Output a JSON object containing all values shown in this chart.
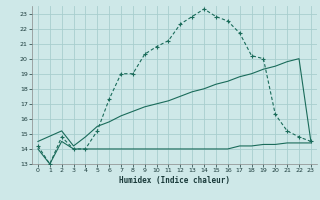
{
  "xlabel": "Humidex (Indice chaleur)",
  "bg_color": "#cee8e8",
  "grid_color": "#a8cece",
  "line_color": "#1a6b5a",
  "xlim": [
    -0.5,
    23.5
  ],
  "ylim": [
    13,
    23.5
  ],
  "yticks": [
    13,
    14,
    15,
    16,
    17,
    18,
    19,
    20,
    21,
    22,
    23
  ],
  "xticks": [
    0,
    1,
    2,
    3,
    4,
    5,
    6,
    7,
    8,
    9,
    10,
    11,
    12,
    13,
    14,
    15,
    16,
    17,
    18,
    19,
    20,
    21,
    22,
    23
  ],
  "line1_x": [
    0,
    1,
    2,
    3,
    4,
    5,
    6,
    7,
    8,
    9,
    10,
    11,
    12,
    13,
    14,
    15,
    16,
    17,
    18,
    19,
    20,
    21,
    22,
    23
  ],
  "line1_y": [
    14.0,
    13.0,
    14.5,
    14.0,
    14.0,
    14.0,
    14.0,
    14.0,
    14.0,
    14.0,
    14.0,
    14.0,
    14.0,
    14.0,
    14.0,
    14.0,
    14.0,
    14.2,
    14.2,
    14.3,
    14.3,
    14.4,
    14.4,
    14.4
  ],
  "line2_x": [
    0,
    2,
    3,
    4,
    5,
    6,
    7,
    8,
    9,
    10,
    11,
    12,
    13,
    14,
    15,
    16,
    17,
    18,
    19,
    20,
    21,
    22,
    23
  ],
  "line2_y": [
    14.5,
    15.2,
    14.2,
    14.8,
    15.5,
    15.8,
    16.2,
    16.5,
    16.8,
    17.0,
    17.2,
    17.5,
    17.8,
    18.0,
    18.3,
    18.5,
    18.8,
    19.0,
    19.3,
    19.5,
    19.8,
    20.0,
    14.5
  ],
  "line3_x": [
    0,
    1,
    2,
    3,
    4,
    5,
    6,
    7,
    8,
    9,
    10,
    11,
    12,
    13,
    14,
    15,
    16,
    17,
    18,
    19,
    20,
    21,
    22,
    23
  ],
  "line3_y": [
    14.2,
    13.0,
    14.8,
    14.0,
    14.0,
    15.2,
    17.3,
    19.0,
    19.0,
    20.3,
    20.8,
    21.2,
    22.3,
    22.8,
    23.3,
    22.8,
    22.5,
    21.7,
    20.2,
    20.0,
    16.3,
    15.2,
    14.8,
    14.5
  ]
}
